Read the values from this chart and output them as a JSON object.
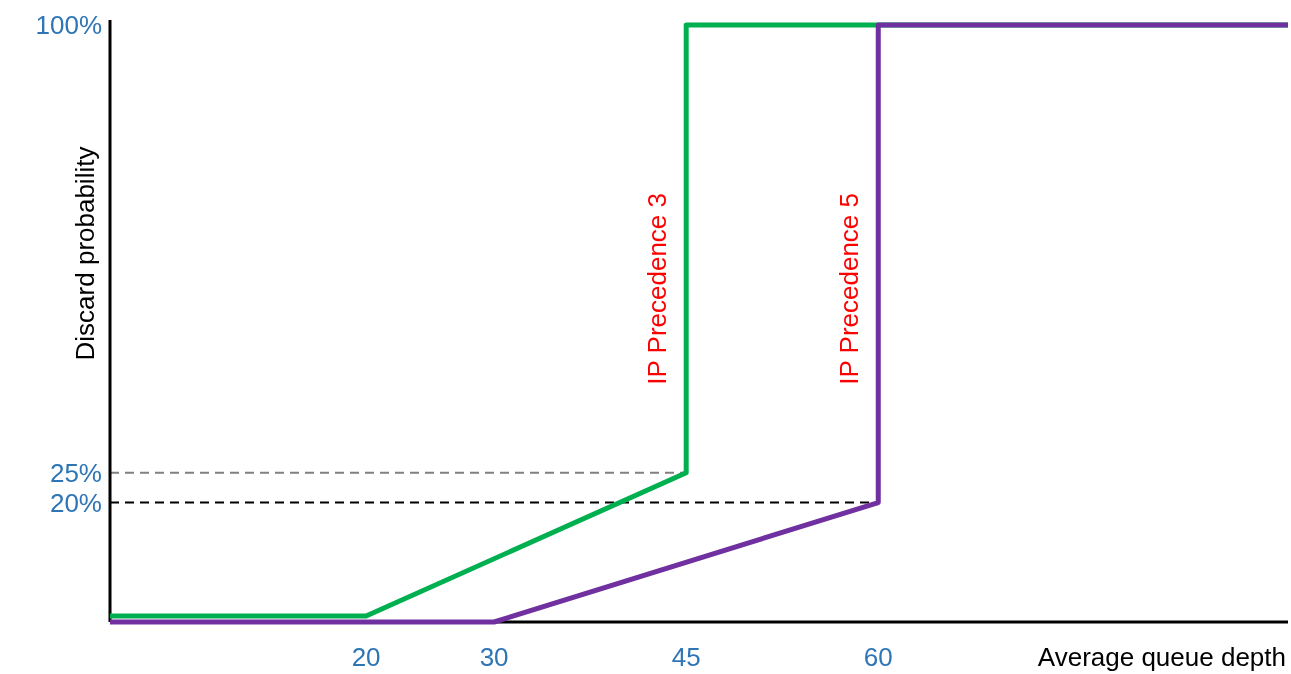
{
  "chart_data": {
    "type": "line",
    "xlabel": "Average queue depth",
    "ylabel": "Discard probability",
    "xlim": [
      0,
      92
    ],
    "ylim": [
      0,
      100
    ],
    "xticks": [
      20,
      30,
      45,
      60
    ],
    "yticks": [
      {
        "value": 20,
        "label": "20%"
      },
      {
        "value": 25,
        "label": "25%"
      },
      {
        "value": 100,
        "label": "100%"
      }
    ],
    "series": [
      {
        "name": "IP Precedence 3",
        "color": "#00b050",
        "x": [
          0,
          20,
          45,
          45,
          92
        ],
        "values": [
          1,
          1,
          25,
          100,
          100
        ]
      },
      {
        "name": "IP Precedence 5",
        "color": "#7030a0",
        "x": [
          0,
          30,
          60,
          60,
          92
        ],
        "values": [
          0,
          0,
          20,
          100,
          100
        ]
      }
    ],
    "ref_lines": [
      {
        "axis": "y",
        "value": 25,
        "color": "#808080",
        "line_style": "dashed"
      },
      {
        "axis": "y",
        "value": 20,
        "color": "#000000",
        "line_style": "dashed"
      }
    ],
    "grid": false,
    "legend": false,
    "marker": "none",
    "line_style": "solid"
  }
}
